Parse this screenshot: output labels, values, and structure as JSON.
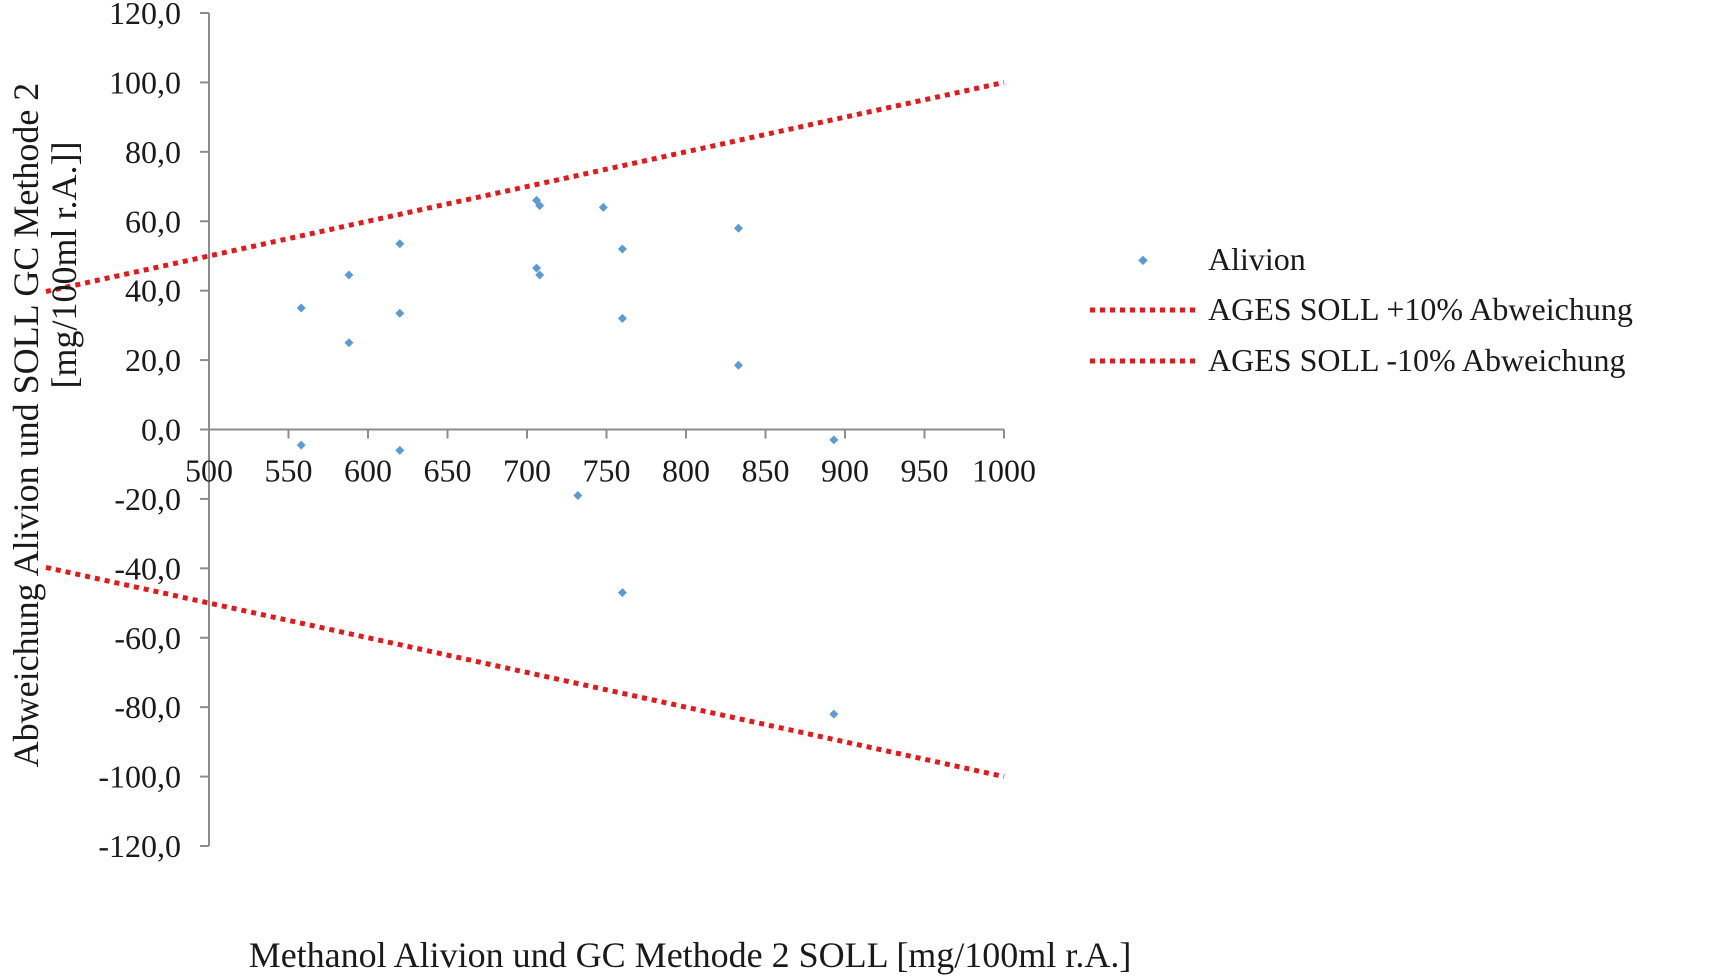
{
  "chart_data": {
    "type": "scatter",
    "title": "",
    "xlabel": "Methanol Alivion und GC Methode 2 SOLL [mg/100ml r.A.]",
    "ylabel_line1": "Abweichung  Alivion und SOLL  GC Methode 2",
    "ylabel_line2": "[mg/100ml r.A.]]",
    "xlim": [
      500,
      1000
    ],
    "ylim": [
      -120,
      120
    ],
    "x_ticks": [
      "500",
      "550",
      "600",
      "650",
      "700",
      "750",
      "800",
      "850",
      "900",
      "950",
      "1000"
    ],
    "x_tick_values": [
      500,
      550,
      600,
      650,
      700,
      750,
      800,
      850,
      900,
      950,
      1000
    ],
    "y_ticks": [
      "120,0",
      "100,0",
      "80,0",
      "60,0",
      "40,0",
      "20,0",
      "0,0",
      "-20,0",
      "-40,0",
      "-60,0",
      "-80,0",
      "-100,0",
      "-120,0"
    ],
    "y_tick_values": [
      120,
      100,
      80,
      60,
      40,
      20,
      0,
      -20,
      -40,
      -60,
      -80,
      -100,
      -120
    ],
    "colors": {
      "points": "#5b9bd5",
      "lines": "#e31a1c",
      "axis": "#8c8c8c"
    },
    "series": [
      {
        "name": "Alivion",
        "kind": "points",
        "points": [
          [
            558,
            35.0
          ],
          [
            558,
            -4.5
          ],
          [
            588,
            44.5
          ],
          [
            588,
            25.0
          ],
          [
            620,
            53.5
          ],
          [
            620,
            33.5
          ],
          [
            620,
            -6.0
          ],
          [
            706,
            66.0
          ],
          [
            708,
            64.5
          ],
          [
            706,
            46.5
          ],
          [
            708,
            44.5
          ],
          [
            732,
            -19.0
          ],
          [
            748,
            64.0
          ],
          [
            760,
            52.0
          ],
          [
            760,
            32.0
          ],
          [
            760,
            -47.0
          ],
          [
            833,
            58.0
          ],
          [
            833,
            18.5
          ],
          [
            893,
            -3.0
          ],
          [
            893,
            -82.0
          ]
        ]
      },
      {
        "name": "AGES SOLL +10% Abweichung",
        "kind": "dotted-line",
        "points": [
          [
            400,
            40
          ],
          [
            1000,
            100
          ]
        ]
      },
      {
        "name": "AGES SOLL -10% Abweichung",
        "kind": "dotted-line",
        "points": [
          [
            400,
            -40
          ],
          [
            1000,
            -100
          ]
        ]
      }
    ],
    "legend": {
      "position": "right",
      "entries": [
        "Alivion",
        "AGES SOLL +10% Abweichung",
        "AGES SOLL -10% Abweichung"
      ]
    }
  }
}
